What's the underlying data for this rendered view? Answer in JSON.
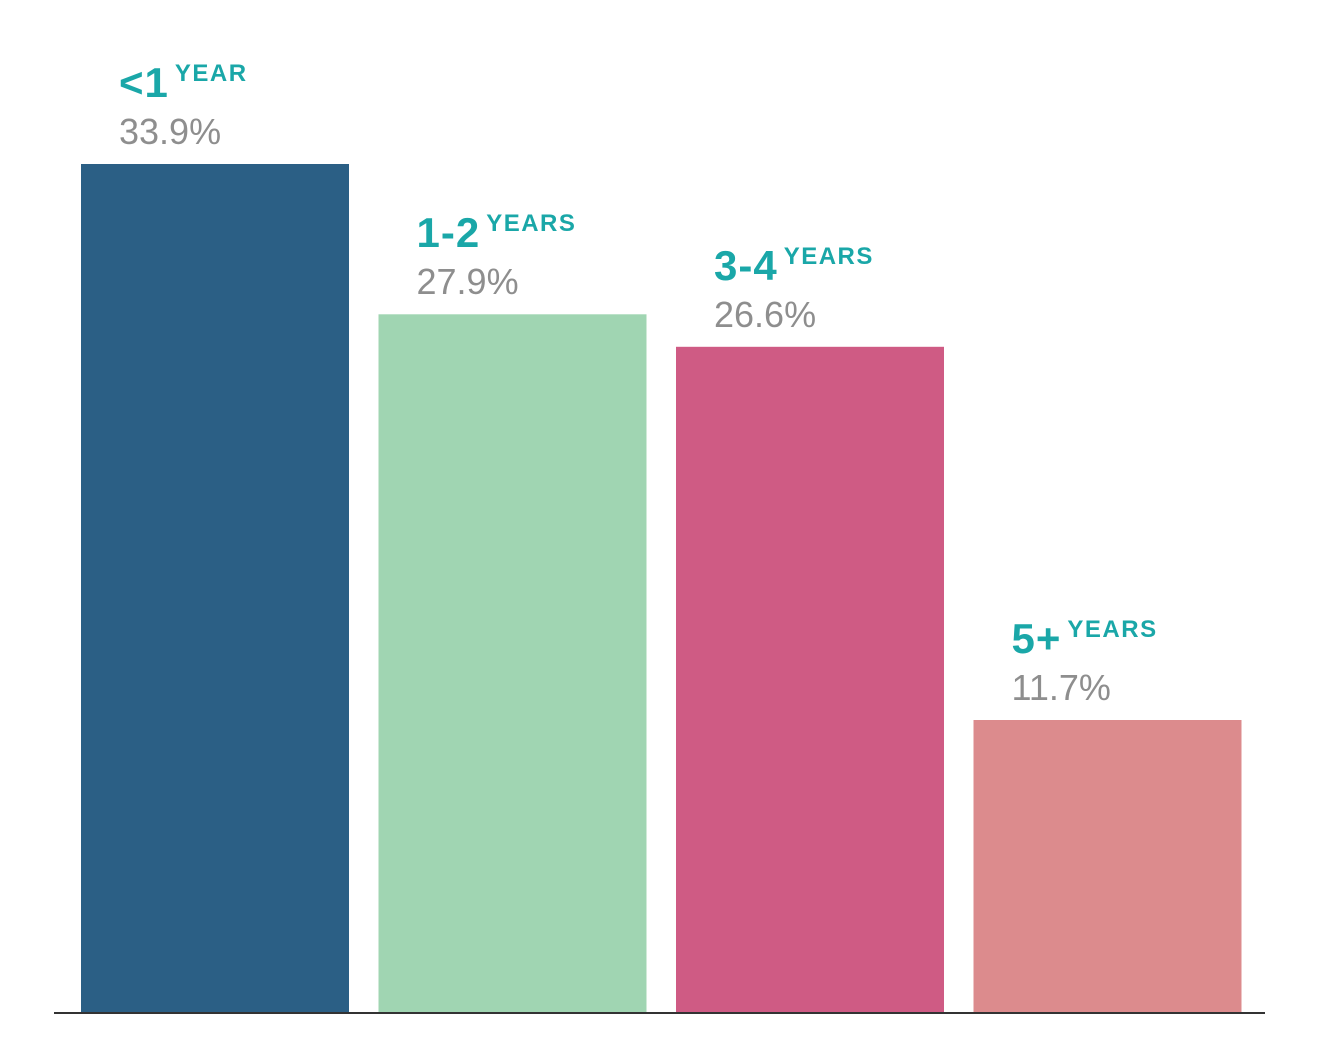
{
  "colors": {
    "label_accent": "#1aa7a8",
    "value_text": "#8e8e8e",
    "baseline": "#333333"
  },
  "chart_data": {
    "type": "bar",
    "categories": [
      "<1 YEAR",
      "1-2 YEARS",
      "3-4 YEARS",
      "5+ YEARS"
    ],
    "labels": [
      {
        "big": "<1",
        "small": "YEAR"
      },
      {
        "big": "1-2",
        "small": "YEARS"
      },
      {
        "big": "3-4",
        "small": "YEARS"
      },
      {
        "big": "5+",
        "small": "YEARS"
      }
    ],
    "values": [
      33.9,
      27.9,
      26.6,
      11.7
    ],
    "value_labels": [
      "33.9%",
      "27.9%",
      "26.6%",
      "11.7%"
    ],
    "colors": [
      "#2b5f85",
      "#a0d5b2",
      "#cf5b84",
      "#dc8b8d"
    ],
    "ylim": [
      0,
      33.9
    ],
    "grid": false,
    "legend": "none"
  }
}
